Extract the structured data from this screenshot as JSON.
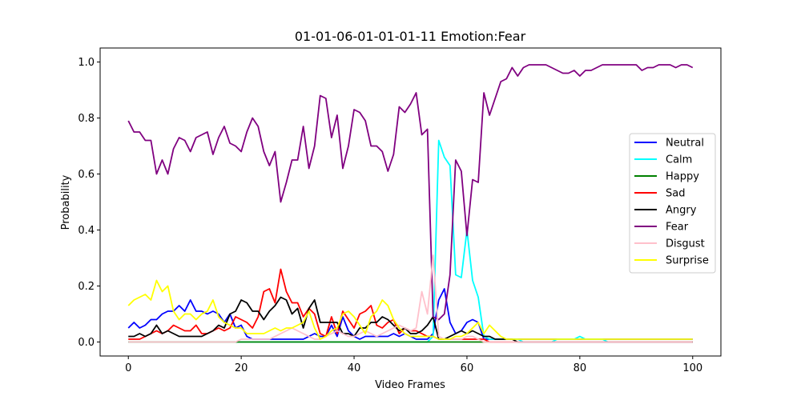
{
  "chart_data": {
    "type": "line",
    "title": "01-01-06-01-01-01-11 Emotion:Fear",
    "xlabel": "Video Frames",
    "ylabel": "Probability",
    "xlim": [
      -5,
      105
    ],
    "ylim": [
      -0.05,
      1.05
    ],
    "xticks": [
      0,
      20,
      40,
      60,
      80,
      100
    ],
    "yticks": [
      0.0,
      0.2,
      0.4,
      0.6,
      0.8,
      1.0
    ],
    "ytick_labels": [
      "0.0",
      "0.2",
      "0.4",
      "0.6",
      "0.8",
      "1.0"
    ],
    "legend_position": "center-right",
    "grid": false,
    "x": [
      0,
      1,
      2,
      3,
      4,
      5,
      6,
      7,
      8,
      9,
      10,
      11,
      12,
      13,
      14,
      15,
      16,
      17,
      18,
      19,
      20,
      21,
      22,
      23,
      24,
      25,
      26,
      27,
      28,
      29,
      30,
      31,
      32,
      33,
      34,
      35,
      36,
      37,
      38,
      39,
      40,
      41,
      42,
      43,
      44,
      45,
      46,
      47,
      48,
      49,
      50,
      51,
      52,
      53,
      54,
      55,
      56,
      57,
      58,
      59,
      60,
      61,
      62,
      63,
      64,
      65,
      66,
      67,
      68,
      69,
      70,
      71,
      72,
      73,
      74,
      75,
      76,
      77,
      78,
      79,
      80,
      81,
      82,
      83,
      84,
      85,
      86,
      87,
      88,
      89,
      90,
      91,
      92,
      93,
      94,
      95,
      96,
      97,
      98,
      99,
      100
    ],
    "series": [
      {
        "name": "Neutral",
        "color": "#0000ff",
        "values": [
          0.05,
          0.07,
          0.05,
          0.06,
          0.08,
          0.08,
          0.1,
          0.11,
          0.11,
          0.13,
          0.11,
          0.15,
          0.11,
          0.11,
          0.1,
          0.11,
          0.1,
          0.07,
          0.1,
          0.05,
          0.06,
          0.02,
          0.01,
          0.01,
          0.01,
          0.01,
          0.01,
          0.01,
          0.01,
          0.01,
          0.01,
          0.01,
          0.02,
          0.03,
          0.02,
          0.02,
          0.06,
          0.02,
          0.09,
          0.04,
          0.02,
          0.01,
          0.02,
          0.02,
          0.02,
          0.02,
          0.02,
          0.03,
          0.02,
          0.03,
          0.02,
          0.01,
          0.01,
          0.01,
          0.03,
          0.15,
          0.19,
          0.07,
          0.03,
          0.04,
          0.07,
          0.08,
          0.07,
          0.01,
          0.01,
          0.01,
          0.01,
          0.01,
          0.01,
          0.01,
          0.01,
          0.01,
          0.01,
          0.01,
          0.01,
          0.01,
          0.01,
          0.01,
          0.01,
          0.01,
          0.01,
          0.01,
          0.01,
          0.01,
          0.01,
          0.01,
          0.01,
          0.01,
          0.01,
          0.01,
          0.01,
          0.01,
          0.01,
          0.01,
          0.01,
          0.01,
          0.01,
          0.01,
          0.01,
          0.01,
          0.01
        ]
      },
      {
        "name": "Calm",
        "color": "#00ffff",
        "values": [
          0.0,
          0.0,
          0.0,
          0.0,
          0.0,
          0.0,
          0.0,
          0.0,
          0.0,
          0.0,
          0.0,
          0.0,
          0.0,
          0.0,
          0.0,
          0.0,
          0.0,
          0.0,
          0.0,
          0.0,
          0.0,
          0.0,
          0.0,
          0.0,
          0.0,
          0.0,
          0.0,
          0.0,
          0.0,
          0.0,
          0.0,
          0.0,
          0.0,
          0.0,
          0.0,
          0.0,
          0.0,
          0.0,
          0.0,
          0.0,
          0.0,
          0.0,
          0.0,
          0.0,
          0.0,
          0.0,
          0.0,
          0.0,
          0.0,
          0.0,
          0.0,
          0.0,
          0.0,
          0.0,
          0.02,
          0.72,
          0.66,
          0.63,
          0.24,
          0.23,
          0.4,
          0.22,
          0.16,
          0.02,
          0.01,
          0.01,
          0.01,
          0.01,
          0.01,
          0.01,
          0.0,
          0.0,
          0.0,
          0.0,
          0.0,
          0.0,
          0.01,
          0.01,
          0.01,
          0.01,
          0.02,
          0.01,
          0.01,
          0.01,
          0.01,
          0.0,
          0.0,
          0.0,
          0.0,
          0.0,
          0.0,
          0.0,
          0.0,
          0.0,
          0.0,
          0.0,
          0.0,
          0.0,
          0.0,
          0.0,
          0.0
        ]
      },
      {
        "name": "Happy",
        "color": "#008000",
        "values": [
          0.0,
          0.0,
          0.0,
          0.0,
          0.0,
          0.0,
          0.0,
          0.0,
          0.0,
          0.0,
          0.0,
          0.0,
          0.0,
          0.0,
          0.0,
          0.0,
          0.0,
          0.0,
          0.0,
          0.0,
          0.0,
          0.0,
          0.0,
          0.0,
          0.0,
          0.0,
          0.0,
          0.0,
          0.0,
          0.0,
          0.0,
          0.0,
          0.0,
          0.0,
          0.0,
          0.0,
          0.0,
          0.0,
          0.0,
          0.0,
          0.0,
          0.0,
          0.0,
          0.0,
          0.0,
          0.0,
          0.0,
          0.0,
          0.0,
          0.0,
          0.0,
          0.0,
          0.0,
          0.0,
          0.0,
          0.0,
          0.0,
          0.0,
          0.0,
          0.0,
          0.0,
          0.0,
          0.0,
          0.0,
          0.0,
          0.0,
          0.0,
          0.0,
          0.0,
          0.0,
          0.0,
          0.0,
          0.0,
          0.0,
          0.0,
          0.0,
          0.0,
          0.0,
          0.0,
          0.0,
          0.0,
          0.0,
          0.0,
          0.0,
          0.0,
          0.0,
          0.0,
          0.0,
          0.0,
          0.0,
          0.0,
          0.0,
          0.0,
          0.0,
          0.0,
          0.0,
          0.0,
          0.0,
          0.0,
          0.0,
          0.0
        ]
      },
      {
        "name": "Sad",
        "color": "#ff0000",
        "values": [
          0.01,
          0.01,
          0.01,
          0.02,
          0.03,
          0.04,
          0.03,
          0.04,
          0.06,
          0.05,
          0.04,
          0.04,
          0.06,
          0.03,
          0.03,
          0.04,
          0.05,
          0.04,
          0.05,
          0.09,
          0.08,
          0.07,
          0.05,
          0.09,
          0.18,
          0.19,
          0.14,
          0.26,
          0.18,
          0.14,
          0.14,
          0.09,
          0.12,
          0.1,
          0.03,
          0.02,
          0.09,
          0.03,
          0.11,
          0.08,
          0.05,
          0.1,
          0.11,
          0.13,
          0.06,
          0.05,
          0.07,
          0.08,
          0.03,
          0.05,
          0.04,
          0.04,
          0.03,
          0.02,
          0.02,
          0.01,
          0.01,
          0.01,
          0.01,
          0.01,
          0.01,
          0.01,
          0.01,
          0.01,
          0.0,
          0.0,
          0.0,
          0.0,
          0.0,
          0.0,
          0.0,
          0.0,
          0.0,
          0.0,
          0.0,
          0.0,
          0.0,
          0.0,
          0.0,
          0.0,
          0.0,
          0.0,
          0.0,
          0.0,
          0.0,
          0.0,
          0.0,
          0.0,
          0.0,
          0.0,
          0.0,
          0.0,
          0.0,
          0.0,
          0.0,
          0.0,
          0.0,
          0.0,
          0.0,
          0.0,
          0.0
        ]
      },
      {
        "name": "Angry",
        "color": "#000000",
        "values": [
          0.02,
          0.02,
          0.03,
          0.02,
          0.03,
          0.06,
          0.03,
          0.04,
          0.03,
          0.02,
          0.02,
          0.02,
          0.02,
          0.02,
          0.03,
          0.04,
          0.06,
          0.05,
          0.1,
          0.11,
          0.15,
          0.14,
          0.11,
          0.11,
          0.08,
          0.11,
          0.13,
          0.16,
          0.15,
          0.1,
          0.12,
          0.05,
          0.12,
          0.15,
          0.07,
          0.07,
          0.07,
          0.07,
          0.03,
          0.03,
          0.02,
          0.05,
          0.05,
          0.07,
          0.07,
          0.09,
          0.08,
          0.06,
          0.04,
          0.05,
          0.03,
          0.03,
          0.04,
          0.06,
          0.09,
          0.01,
          0.01,
          0.02,
          0.03,
          0.04,
          0.03,
          0.04,
          0.03,
          0.02,
          0.02,
          0.01,
          0.01,
          0.01,
          0.01,
          0.0,
          0.0,
          0.0,
          0.0,
          0.0,
          0.0,
          0.0,
          0.0,
          0.0,
          0.0,
          0.0,
          0.0,
          0.0,
          0.0,
          0.0,
          0.0,
          0.0,
          0.0,
          0.0,
          0.0,
          0.0,
          0.0,
          0.0,
          0.0,
          0.0,
          0.0,
          0.0,
          0.0,
          0.0,
          0.0,
          0.0,
          0.0
        ]
      },
      {
        "name": "Fear",
        "color": "#800080",
        "values": [
          0.79,
          0.75,
          0.75,
          0.72,
          0.72,
          0.6,
          0.65,
          0.6,
          0.69,
          0.73,
          0.72,
          0.68,
          0.73,
          0.74,
          0.75,
          0.67,
          0.73,
          0.77,
          0.71,
          0.7,
          0.68,
          0.75,
          0.8,
          0.77,
          0.68,
          0.63,
          0.68,
          0.5,
          0.57,
          0.65,
          0.65,
          0.77,
          0.62,
          0.7,
          0.88,
          0.87,
          0.73,
          0.81,
          0.62,
          0.7,
          0.83,
          0.82,
          0.79,
          0.7,
          0.7,
          0.68,
          0.61,
          0.67,
          0.84,
          0.82,
          0.85,
          0.89,
          0.74,
          0.76,
          0.09,
          0.08,
          0.1,
          0.24,
          0.65,
          0.61,
          0.38,
          0.58,
          0.57,
          0.89,
          0.81,
          0.87,
          0.93,
          0.94,
          0.98,
          0.95,
          0.98,
          0.99,
          0.99,
          0.99,
          0.99,
          0.98,
          0.97,
          0.96,
          0.96,
          0.97,
          0.95,
          0.97,
          0.97,
          0.98,
          0.99,
          0.99,
          0.99,
          0.99,
          0.99,
          0.99,
          0.99,
          0.97,
          0.98,
          0.98,
          0.99,
          0.99,
          0.99,
          0.98,
          0.99,
          0.99,
          0.98
        ]
      },
      {
        "name": "Disgust",
        "color": "#ffc0cb",
        "values": [
          0.0,
          0.0,
          0.0,
          0.0,
          0.0,
          0.0,
          0.0,
          0.0,
          0.0,
          0.0,
          0.0,
          0.0,
          0.0,
          0.0,
          0.0,
          0.0,
          0.0,
          0.0,
          0.0,
          0.0,
          0.01,
          0.01,
          0.01,
          0.01,
          0.01,
          0.01,
          0.02,
          0.03,
          0.04,
          0.05,
          0.04,
          0.03,
          0.02,
          0.01,
          0.01,
          0.02,
          0.03,
          0.04,
          0.03,
          0.02,
          0.02,
          0.03,
          0.04,
          0.03,
          0.02,
          0.03,
          0.04,
          0.05,
          0.06,
          0.05,
          0.04,
          0.05,
          0.18,
          0.1,
          0.31,
          0.02,
          0.01,
          0.01,
          0.01,
          0.01,
          0.02,
          0.02,
          0.01,
          0.0,
          0.0,
          0.0,
          0.0,
          0.0,
          0.0,
          0.0,
          0.0,
          0.0,
          0.0,
          0.0,
          0.0,
          0.0,
          0.0,
          0.0,
          0.0,
          0.0,
          0.0,
          0.0,
          0.0,
          0.0,
          0.0,
          0.0,
          0.0,
          0.0,
          0.0,
          0.0,
          0.0,
          0.0,
          0.0,
          0.0,
          0.0,
          0.0,
          0.0,
          0.0,
          0.0,
          0.0,
          0.0
        ]
      },
      {
        "name": "Surprise",
        "color": "#ffff00",
        "values": [
          0.13,
          0.15,
          0.16,
          0.17,
          0.15,
          0.22,
          0.18,
          0.2,
          0.11,
          0.08,
          0.1,
          0.1,
          0.08,
          0.1,
          0.11,
          0.15,
          0.09,
          0.07,
          0.06,
          0.05,
          0.05,
          0.03,
          0.03,
          0.03,
          0.03,
          0.04,
          0.05,
          0.04,
          0.05,
          0.05,
          0.06,
          0.07,
          0.11,
          0.05,
          0.01,
          0.02,
          0.04,
          0.05,
          0.1,
          0.11,
          0.09,
          0.06,
          0.03,
          0.09,
          0.11,
          0.15,
          0.13,
          0.08,
          0.05,
          0.03,
          0.02,
          0.02,
          0.02,
          0.02,
          0.02,
          0.01,
          0.01,
          0.01,
          0.02,
          0.02,
          0.03,
          0.05,
          0.07,
          0.03,
          0.06,
          0.04,
          0.02,
          0.01,
          0.01,
          0.01,
          0.01,
          0.01,
          0.01,
          0.01,
          0.01,
          0.01,
          0.01,
          0.01,
          0.01,
          0.01,
          0.01,
          0.01,
          0.01,
          0.01,
          0.01,
          0.01,
          0.01,
          0.01,
          0.01,
          0.01,
          0.01,
          0.01,
          0.01,
          0.01,
          0.01,
          0.01,
          0.01,
          0.01,
          0.01,
          0.01,
          0.01
        ]
      }
    ]
  }
}
